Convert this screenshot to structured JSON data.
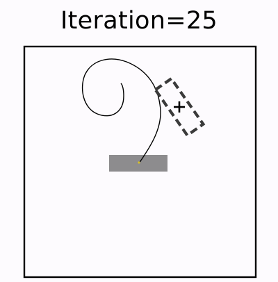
{
  "title": "Iteration=25",
  "colors": {
    "background": "#fdfbfe",
    "frame": "#000000",
    "path": "#000000",
    "start_pad": "#8d8c8e",
    "start_marker": "#d8c22a",
    "target_box": "#3a3a3a",
    "target_marker": "#000000"
  },
  "icons": {
    "target_marker": "plus-icon"
  }
}
